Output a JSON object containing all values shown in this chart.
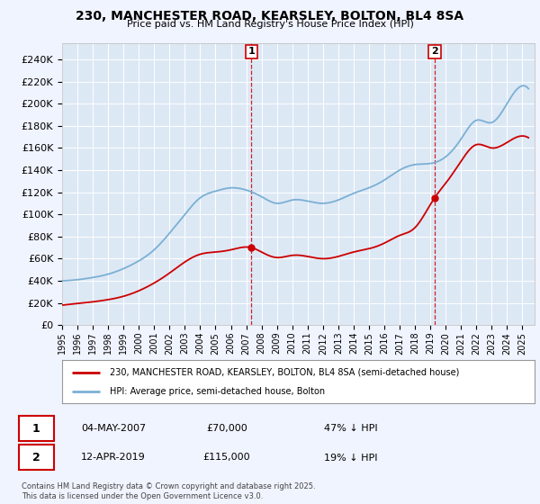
{
  "title": "230, MANCHESTER ROAD, KEARSLEY, BOLTON, BL4 8SA",
  "subtitle": "Price paid vs. HM Land Registry's House Price Index (HPI)",
  "property_label": "230, MANCHESTER ROAD, KEARSLEY, BOLTON, BL4 8SA (semi-detached house)",
  "hpi_label": "HPI: Average price, semi-detached house, Bolton",
  "sale1_date": "04-MAY-2007",
  "sale1_price": 70000,
  "sale1_hpi_diff": "47% ↓ HPI",
  "sale2_date": "12-APR-2019",
  "sale2_price": 115000,
  "sale2_hpi_diff": "19% ↓ HPI",
  "footer": "Contains HM Land Registry data © Crown copyright and database right 2025.\nThis data is licensed under the Open Government Licence v3.0.",
  "property_color": "#cc0000",
  "hpi_color": "#7ab0d4",
  "background_color": "#f0f4ff",
  "plot_bg_color": "#dde8f5",
  "sale1_year": 2007.34,
  "sale2_year": 2019.28,
  "yticks": [
    0,
    20000,
    40000,
    60000,
    80000,
    100000,
    120000,
    140000,
    160000,
    180000,
    200000,
    220000,
    240000
  ]
}
